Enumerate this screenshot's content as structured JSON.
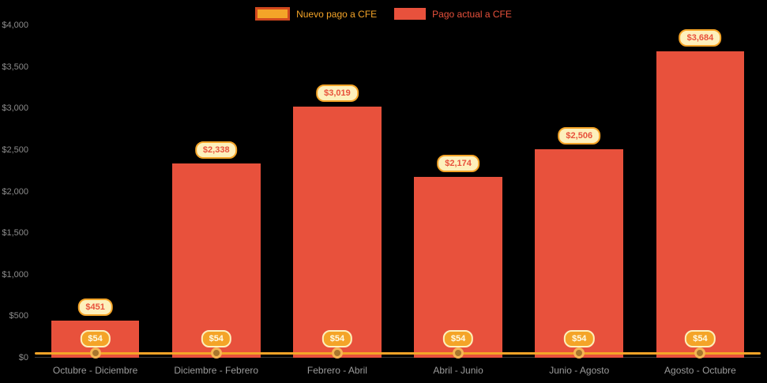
{
  "colors": {
    "background": "#000000",
    "bar_red": "#e8513c",
    "line_orange": "#f4a428",
    "pill_cream": "#fdf0bc",
    "axis_text": "#8c8c8c",
    "category_text": "#9b9b9b"
  },
  "chart_data": {
    "type": "bar",
    "categories": [
      "Octubre - Diciembre",
      "Diciembre - Febrero",
      "Febrero - Abril",
      "Abril - Junio",
      "Junio - Agosto",
      "Agosto - Octubre"
    ],
    "series": [
      {
        "name": "Nuevo pago a CFE",
        "type": "line",
        "color": "#f4a428",
        "values": [
          54,
          54,
          54,
          54,
          54,
          54
        ],
        "labels": [
          "$54",
          "$54",
          "$54",
          "$54",
          "$54",
          "$54"
        ]
      },
      {
        "name": "Pago actual a CFE",
        "type": "bar",
        "color": "#e8513c",
        "values": [
          451,
          2338,
          3019,
          2174,
          2506,
          3684
        ],
        "labels": [
          "$451",
          "$2,338",
          "$3,019",
          "$2,174",
          "$2,506",
          "$3,684"
        ]
      }
    ],
    "title": "",
    "xlabel": "",
    "ylabel": "",
    "ylim": [
      0,
      4000
    ],
    "ytick_step": 500,
    "ytick_labels": [
      "$0",
      "$500",
      "$1,000",
      "$1,500",
      "$2,000",
      "$2,500",
      "$3,000",
      "$3,500",
      "$4,000"
    ],
    "legend_position": "top",
    "grid": false
  }
}
